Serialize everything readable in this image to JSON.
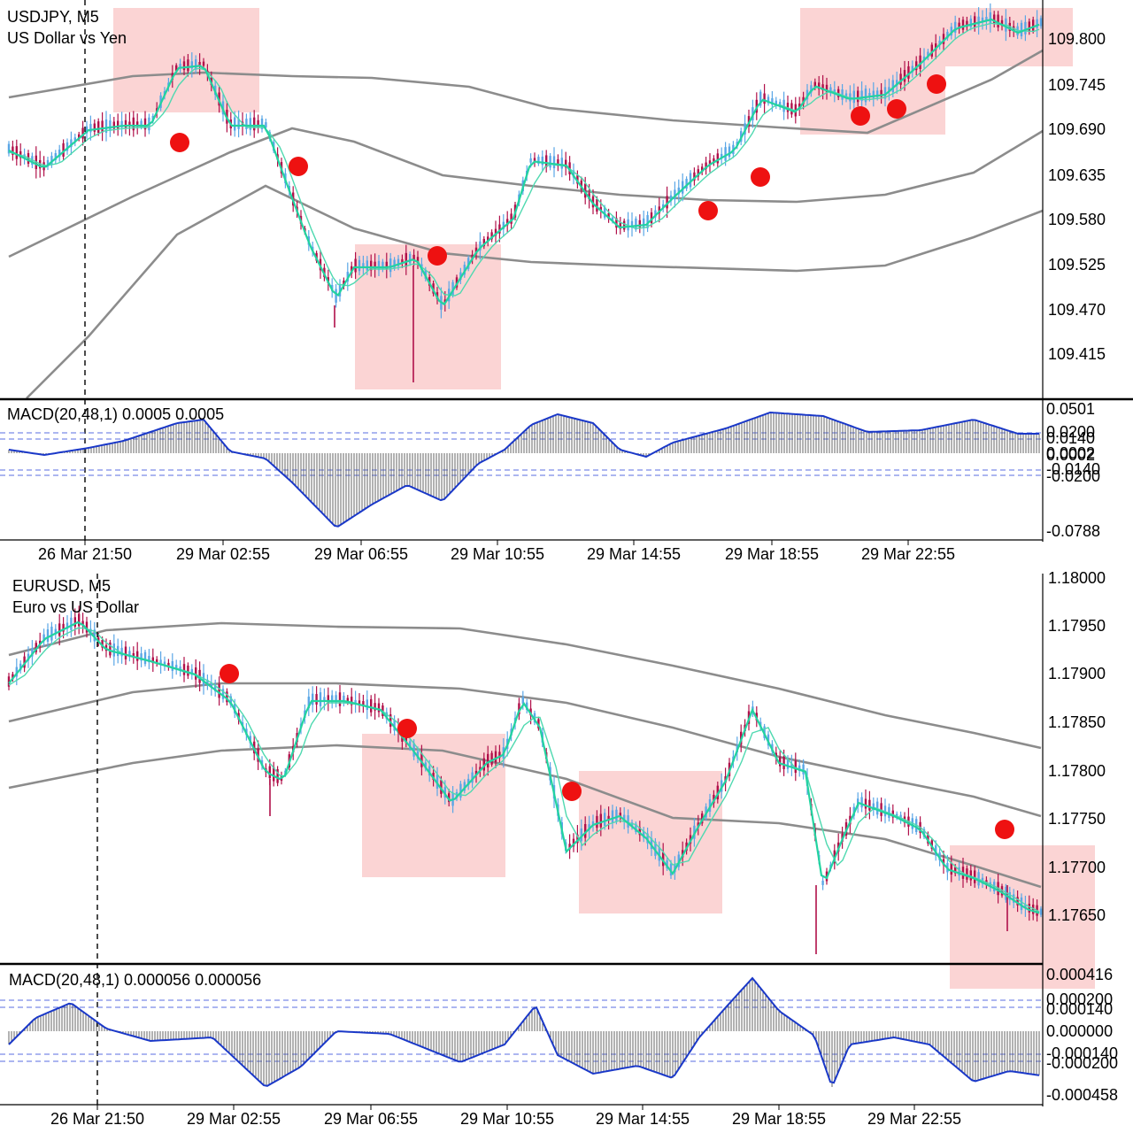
{
  "colors": {
    "background": "#ffffff",
    "zone": "#fbd4d4",
    "envelope": "#8c8c8c",
    "ma_fast": "#22d3a0",
    "ma_slow": "#4fd9b0",
    "candle_up": "#5aa6e6",
    "candle_down": "#b0104a",
    "signal_dot": "#ee1111",
    "macd_line": "#1a38c8",
    "macd_hist": "#555555",
    "level_line": "#5a6de0",
    "separator": "#000000"
  },
  "charts": [
    {
      "symbol": "USDJPY, M5",
      "description": "US Dollar vs Yen",
      "price_labels": [
        "109.800",
        "109.745",
        "109.690",
        "109.635",
        "109.580",
        "109.525",
        "109.470",
        "109.415"
      ],
      "macd": {
        "title": "MACD(20,48,1) 0.0005 0.0005",
        "levels": [
          "0.0501",
          "0.0200",
          "0.0140",
          "0.0002",
          "0.0002",
          "-0.0140",
          "-0.0200",
          "-0.0788"
        ]
      },
      "time_labels": [
        "26 Mar 21:50",
        "29 Mar 02:55",
        "29 Mar 06:55",
        "29 Mar 10:55",
        "29 Mar 14:55",
        "29 Mar 18:55",
        "29 Mar 22:55"
      ]
    },
    {
      "symbol": "EURUSD, M5",
      "description": "Euro vs US Dollar",
      "price_labels": [
        "1.18000",
        "1.17950",
        "1.17900",
        "1.17850",
        "1.17800",
        "1.17750",
        "1.17700",
        "1.17650"
      ],
      "macd": {
        "title": "MACD(20,48,1) 0.000056 0.000056",
        "levels": [
          "0.000416",
          "0.000200",
          "0.000140",
          "0.000000",
          "-0.000140",
          "-0.000200",
          "-0.000458"
        ]
      },
      "time_labels": [
        "26 Mar 21:50",
        "29 Mar 02:55",
        "29 Mar 06:55",
        "29 Mar 10:55",
        "29 Mar 14:55",
        "29 Mar 18:55",
        "29 Mar 22:55"
      ]
    }
  ]
}
